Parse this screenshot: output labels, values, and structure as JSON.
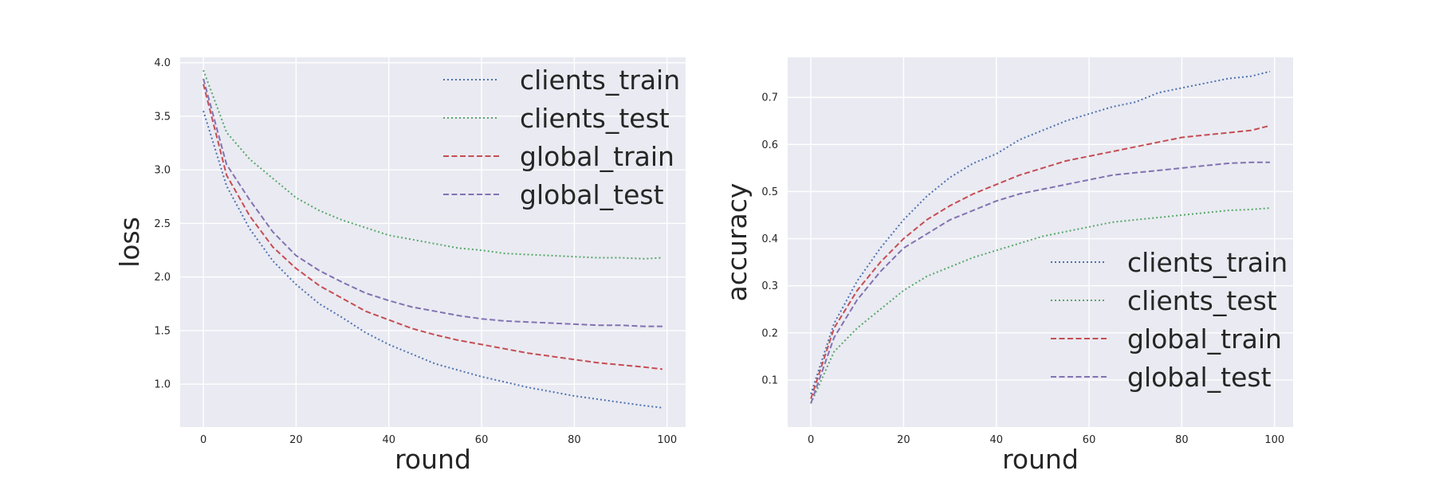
{
  "chart_data": [
    {
      "type": "line",
      "xlabel": "round",
      "ylabel": "loss",
      "xlim": [
        -5,
        104
      ],
      "ylim": [
        0.6,
        4.05
      ],
      "xticks": [
        "0",
        "20",
        "40",
        "60",
        "80",
        "100"
      ],
      "yticks": [
        "1.0",
        "1.5",
        "2.0",
        "2.5",
        "3.0",
        "3.5",
        "4.0"
      ],
      "grid": true,
      "legend_position": "upper right",
      "x": [
        0,
        5,
        10,
        15,
        20,
        25,
        30,
        35,
        40,
        45,
        50,
        55,
        60,
        65,
        70,
        75,
        80,
        85,
        90,
        95,
        99
      ],
      "series": [
        {
          "name": "clients_train",
          "color": "#4c72b0",
          "style": "dotted",
          "values": [
            3.55,
            2.85,
            2.45,
            2.15,
            1.93,
            1.75,
            1.62,
            1.48,
            1.37,
            1.28,
            1.19,
            1.13,
            1.07,
            1.02,
            0.97,
            0.93,
            0.89,
            0.86,
            0.83,
            0.8,
            0.78
          ]
        },
        {
          "name": "clients_test",
          "color": "#55a868",
          "style": "dotted",
          "values": [
            3.93,
            3.35,
            3.1,
            2.92,
            2.74,
            2.62,
            2.53,
            2.46,
            2.39,
            2.35,
            2.31,
            2.27,
            2.25,
            2.22,
            2.21,
            2.2,
            2.19,
            2.18,
            2.18,
            2.17,
            2.18
          ]
        },
        {
          "name": "global_train",
          "color": "#c44e52",
          "style": "dashed",
          "values": [
            3.8,
            2.95,
            2.57,
            2.28,
            2.08,
            1.92,
            1.8,
            1.68,
            1.6,
            1.52,
            1.46,
            1.41,
            1.37,
            1.33,
            1.29,
            1.26,
            1.23,
            1.2,
            1.18,
            1.16,
            1.14
          ]
        },
        {
          "name": "global_test",
          "color": "#8172b2",
          "style": "dashed",
          "values": [
            3.85,
            3.05,
            2.72,
            2.42,
            2.2,
            2.06,
            1.95,
            1.85,
            1.78,
            1.72,
            1.68,
            1.64,
            1.61,
            1.59,
            1.58,
            1.57,
            1.56,
            1.55,
            1.55,
            1.54,
            1.54
          ]
        }
      ]
    },
    {
      "type": "line",
      "xlabel": "round",
      "ylabel": "accuracy",
      "xlim": [
        -5,
        104
      ],
      "ylim": [
        0.0,
        0.785
      ],
      "xticks": [
        "0",
        "20",
        "40",
        "60",
        "80",
        "100"
      ],
      "yticks": [
        "0.1",
        "0.2",
        "0.3",
        "0.4",
        "0.5",
        "0.6",
        "0.7"
      ],
      "grid": true,
      "legend_position": "lower right",
      "x": [
        0,
        5,
        10,
        15,
        20,
        25,
        30,
        35,
        40,
        45,
        50,
        55,
        60,
        65,
        70,
        75,
        80,
        85,
        90,
        95,
        99
      ],
      "series": [
        {
          "name": "clients_train",
          "color": "#4c72b0",
          "style": "dotted",
          "values": [
            0.07,
            0.22,
            0.31,
            0.38,
            0.44,
            0.49,
            0.53,
            0.56,
            0.58,
            0.61,
            0.63,
            0.65,
            0.665,
            0.68,
            0.69,
            0.71,
            0.72,
            0.73,
            0.74,
            0.745,
            0.755
          ]
        },
        {
          "name": "clients_test",
          "color": "#55a868",
          "style": "dotted",
          "values": [
            0.05,
            0.16,
            0.21,
            0.25,
            0.29,
            0.32,
            0.34,
            0.36,
            0.375,
            0.39,
            0.405,
            0.415,
            0.425,
            0.435,
            0.44,
            0.445,
            0.45,
            0.455,
            0.46,
            0.462,
            0.465
          ]
        },
        {
          "name": "global_train",
          "color": "#c44e52",
          "style": "dashed",
          "values": [
            0.06,
            0.21,
            0.29,
            0.35,
            0.4,
            0.44,
            0.47,
            0.495,
            0.515,
            0.535,
            0.55,
            0.565,
            0.575,
            0.585,
            0.595,
            0.605,
            0.615,
            0.62,
            0.625,
            0.63,
            0.64
          ]
        },
        {
          "name": "global_test",
          "color": "#8172b2",
          "style": "dashed",
          "values": [
            0.05,
            0.19,
            0.27,
            0.33,
            0.38,
            0.41,
            0.44,
            0.46,
            0.48,
            0.495,
            0.505,
            0.515,
            0.525,
            0.535,
            0.54,
            0.545,
            0.55,
            0.555,
            0.56,
            0.562,
            0.562
          ]
        }
      ]
    }
  ]
}
